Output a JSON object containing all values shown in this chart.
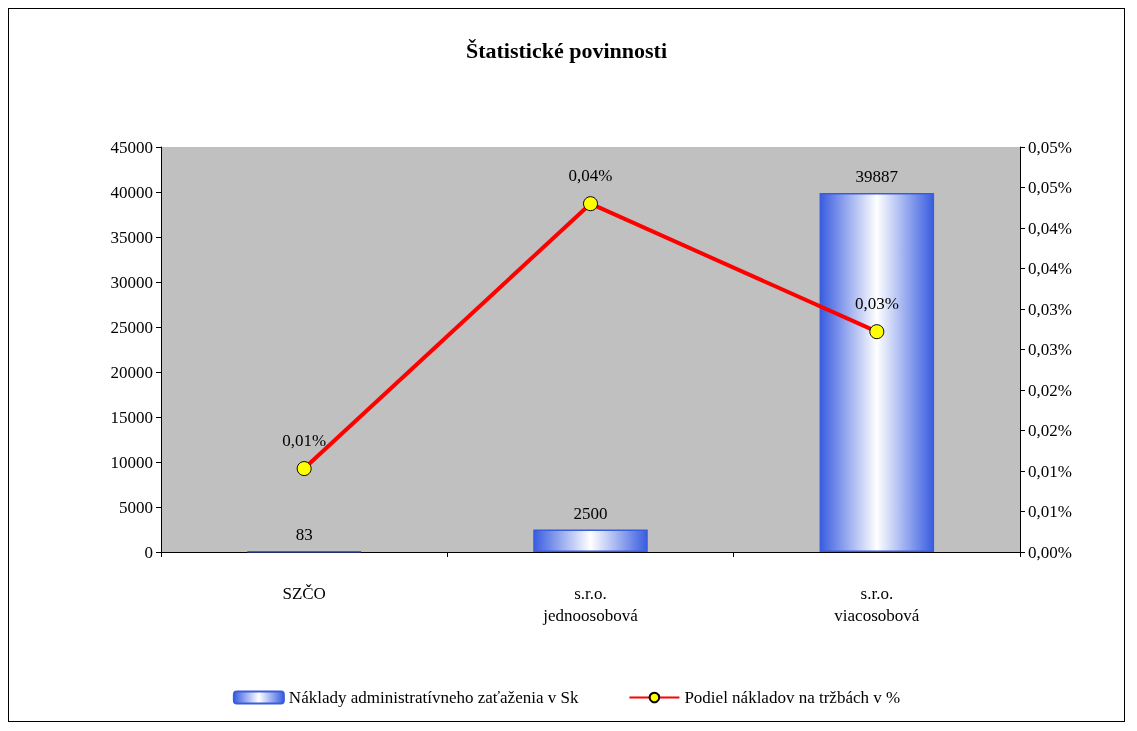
{
  "chart_data": {
    "type": "bar",
    "title": "Štatistické povinnosti",
    "categories": [
      "SZČO",
      "s.r.o.\njednoosobová",
      "s.r.o.\nviacosobová"
    ],
    "series": [
      {
        "name": "Náklady administratívneho zaťaženia v Sk",
        "color": "#3a5de0",
        "values": [
          83,
          2500,
          39887
        ]
      },
      {
        "name": "Podiel nákladov na tržbách v %",
        "type": "line",
        "axis": "y2",
        "color": "#ff0000",
        "values": [
          0.0103,
          0.043,
          0.0272
        ],
        "value_labels": [
          "0,01%",
          "0,04%",
          "0,03%"
        ]
      }
    ],
    "data_labels": true,
    "ylim": [
      0,
      45000
    ],
    "yticks": [
      0,
      5000,
      10000,
      15000,
      20000,
      25000,
      30000,
      35000,
      40000,
      45000
    ],
    "y2lim": [
      0,
      0.05
    ],
    "y2ticks": [
      {
        "value": 0,
        "label": "0,00%"
      },
      {
        "value": 0.005,
        "label": "0,01%"
      },
      {
        "value": 0.01,
        "label": "0,01%"
      },
      {
        "value": 0.015,
        "label": "0,02%"
      },
      {
        "value": 0.02,
        "label": "0,02%"
      },
      {
        "value": 0.025,
        "label": "0,03%"
      },
      {
        "value": 0.03,
        "label": "0,03%"
      },
      {
        "value": 0.035,
        "label": "0,04%"
      },
      {
        "value": 0.04,
        "label": "0,04%"
      },
      {
        "value": 0.045,
        "label": "0,05%"
      },
      {
        "value": 0.05,
        "label": "0,05%"
      }
    ],
    "grid": false,
    "legend": "bottom",
    "marker": "circle",
    "line_style": "solid"
  }
}
